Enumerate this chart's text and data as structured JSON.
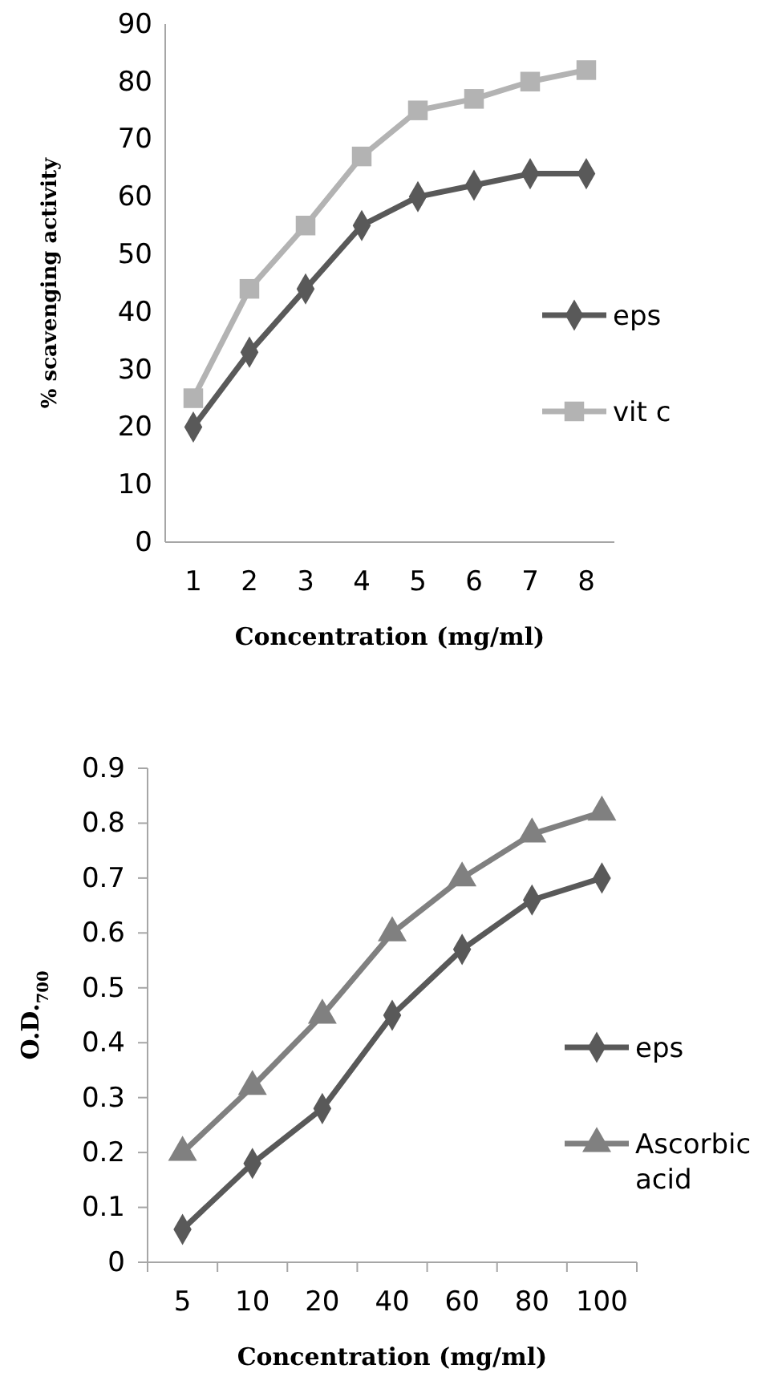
{
  "chart_data": [
    {
      "type": "line",
      "xlabel": "Concentration (mg/ml)",
      "ylabel": "% scavenging activity",
      "categories": [
        "1",
        "2",
        "3",
        "4",
        "5",
        "6",
        "7",
        "8"
      ],
      "series": [
        {
          "name": "eps",
          "color": "#595959",
          "marker": "diamond",
          "values": [
            20,
            33,
            44,
            55,
            60,
            62,
            64,
            64
          ]
        },
        {
          "name": "vit c",
          "color": "#b3b3b3",
          "marker": "square",
          "values": [
            25,
            44,
            55,
            67,
            75,
            77,
            80,
            82
          ]
        }
      ],
      "ylim": [
        0,
        90
      ],
      "yticks": [
        0,
        10,
        20,
        30,
        40,
        50,
        60,
        70,
        80,
        90
      ],
      "grid": false,
      "legend": "right"
    },
    {
      "type": "line",
      "xlabel": "Concentration (mg/ml)",
      "ylabel": "O.D.$_{700}$",
      "categories": [
        "5",
        "10",
        "20",
        "40",
        "60",
        "80",
        "100"
      ],
      "series": [
        {
          "name": "eps",
          "color": "#595959",
          "marker": "diamond",
          "values": [
            0.06,
            0.18,
            0.28,
            0.45,
            0.57,
            0.66,
            0.7
          ]
        },
        {
          "name": "Ascorbic acid",
          "color": "#808080",
          "marker": "triangle",
          "values": [
            0.2,
            0.32,
            0.45,
            0.6,
            0.7,
            0.78,
            0.82
          ]
        }
      ],
      "ylim": [
        0,
        0.9
      ],
      "yticks": [
        0,
        0.1,
        0.2,
        0.3,
        0.4,
        0.5,
        0.6,
        0.7,
        0.8,
        0.9
      ],
      "grid": false,
      "legend": "right"
    }
  ]
}
